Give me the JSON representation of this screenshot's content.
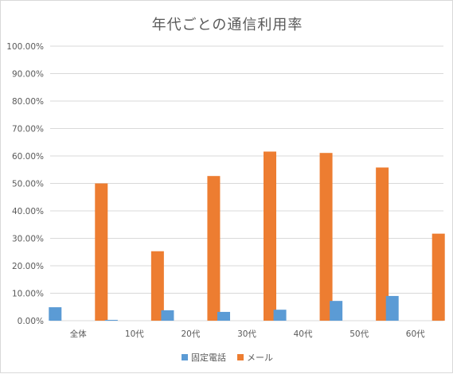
{
  "chart_data": {
    "type": "bar",
    "title": "年代ごとの通信利用率",
    "categories": [
      "全体",
      "10代",
      "20代",
      "30代",
      "40代",
      "50代",
      "60代"
    ],
    "series": [
      {
        "name": "固定電話",
        "color": "#5b9bd5",
        "values": [
          4.9,
          0.3,
          3.8,
          3.2,
          4.0,
          7.2,
          9.0
        ]
      },
      {
        "name": "メール",
        "color": "#ed7d31",
        "values": [
          50.0,
          25.3,
          52.7,
          61.6,
          61.1,
          55.8,
          31.7
        ]
      }
    ],
    "yticks": [
      "0.00%",
      "10.00%",
      "20.00%",
      "30.00%",
      "40.00%",
      "50.00%",
      "60.00%",
      "70.00%",
      "80.00%",
      "90.00%",
      "100.00%"
    ],
    "ylim": [
      0,
      100
    ],
    "grid": true,
    "legend": "bottom"
  }
}
